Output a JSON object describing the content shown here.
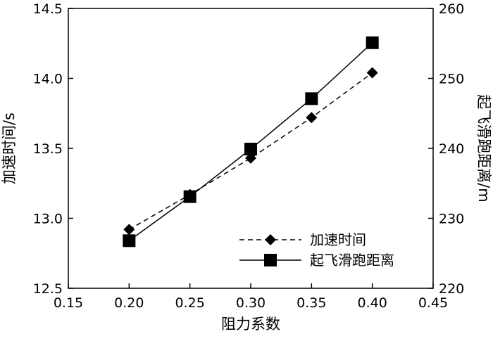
{
  "chart_data": {
    "type": "line",
    "xlabel": "阻力系数",
    "ylabel_left": "加速时间/s",
    "ylabel_right": "起飞滑跑距离/m",
    "xlim": [
      0.15,
      0.45
    ],
    "ylim_left": [
      12.5,
      14.5
    ],
    "ylim_right": [
      220,
      260
    ],
    "x_ticks": [
      "0.15",
      "0.20",
      "0.25",
      "0.30",
      "0.35",
      "0.40",
      "0.45"
    ],
    "y_left_ticks": [
      "12.5",
      "13.0",
      "13.5",
      "14.0",
      "14.5"
    ],
    "y_right_ticks": [
      "220",
      "230",
      "240",
      "250",
      "260"
    ],
    "grid": false,
    "legend_position": "bottom-right",
    "series": [
      {
        "name": "加速时间",
        "axis": "left",
        "marker": "diamond",
        "line_style": "dashed",
        "color": "#000000",
        "x": [
          0.2,
          0.25,
          0.3,
          0.35,
          0.4
        ],
        "values": [
          12.92,
          13.17,
          13.43,
          13.72,
          14.04
        ]
      },
      {
        "name": "起飞滑跑距离",
        "axis": "right",
        "marker": "square",
        "line_style": "solid",
        "color": "#000000",
        "x": [
          0.2,
          0.25,
          0.3,
          0.35,
          0.4
        ],
        "values": [
          226.8,
          233.1,
          239.9,
          247.1,
          255.1
        ]
      }
    ]
  }
}
